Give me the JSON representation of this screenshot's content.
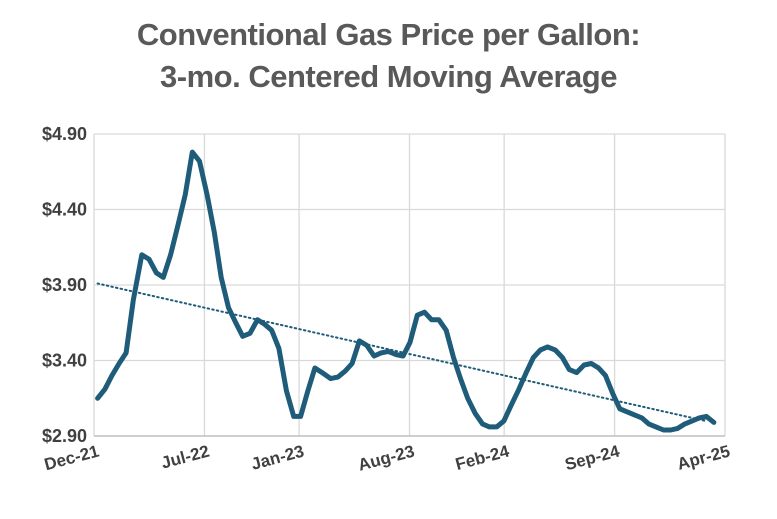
{
  "chart_data": {
    "type": "line",
    "title": [
      "Conventional Gas Price per Gallon:",
      "3-mo. Centered Moving Average"
    ],
    "xlabel": "",
    "ylabel": "",
    "y_ticks": [
      "$2.90",
      "$3.40",
      "$3.90",
      "$4.40",
      "$4.90"
    ],
    "y_tick_values": [
      2.9,
      3.4,
      3.9,
      4.4,
      4.9
    ],
    "ylim": [
      2.9,
      4.9
    ],
    "x_ticks": [
      "Dec-21",
      "Jul-22",
      "Jan-23",
      "Aug-23",
      "Feb-24",
      "Sep-24",
      "Apr-25"
    ],
    "x_tick_values": [
      "2021-12",
      "2022-07",
      "2023-01",
      "2023-08",
      "2024-02",
      "2024-09",
      "2025-04"
    ],
    "grid": true,
    "legend": "none",
    "colors": {
      "series": "#1f5c7a",
      "trend": "#1f5c7a",
      "grid": "#d9d9d9",
      "axis": "#bfbfbf"
    },
    "series": [
      {
        "style": "solid",
        "points": [
          [
            "2021-12-08",
            3.15
          ],
          [
            "2021-12-22",
            3.21
          ],
          [
            "2022-01-05",
            3.3
          ],
          [
            "2022-01-19",
            3.38
          ],
          [
            "2022-02-02",
            3.45
          ],
          [
            "2022-02-16",
            3.8
          ],
          [
            "2022-03-02",
            4.1
          ],
          [
            "2022-03-16",
            4.07
          ],
          [
            "2022-03-30",
            3.98
          ],
          [
            "2022-04-13",
            3.95
          ],
          [
            "2022-04-27",
            4.1
          ],
          [
            "2022-05-11",
            4.3
          ],
          [
            "2022-05-25",
            4.5
          ],
          [
            "2022-06-08",
            4.78
          ],
          [
            "2022-06-22",
            4.72
          ],
          [
            "2022-07-06",
            4.5
          ],
          [
            "2022-07-20",
            4.25
          ],
          [
            "2022-08-03",
            3.95
          ],
          [
            "2022-08-17",
            3.75
          ],
          [
            "2022-08-31",
            3.65
          ],
          [
            "2022-09-14",
            3.56
          ],
          [
            "2022-09-28",
            3.58
          ],
          [
            "2022-10-12",
            3.67
          ],
          [
            "2022-10-26",
            3.64
          ],
          [
            "2022-11-09",
            3.6
          ],
          [
            "2022-11-23",
            3.48
          ],
          [
            "2022-12-07",
            3.2
          ],
          [
            "2022-12-21",
            3.03
          ],
          [
            "2023-01-04",
            3.03
          ],
          [
            "2023-01-18",
            3.2
          ],
          [
            "2023-02-01",
            3.35
          ],
          [
            "2023-02-15",
            3.32
          ],
          [
            "2023-03-01",
            3.28
          ],
          [
            "2023-03-15",
            3.29
          ],
          [
            "2023-03-29",
            3.33
          ],
          [
            "2023-04-12",
            3.38
          ],
          [
            "2023-04-26",
            3.53
          ],
          [
            "2023-05-10",
            3.5
          ],
          [
            "2023-05-24",
            3.43
          ],
          [
            "2023-06-07",
            3.45
          ],
          [
            "2023-06-21",
            3.46
          ],
          [
            "2023-07-05",
            3.44
          ],
          [
            "2023-07-19",
            3.43
          ],
          [
            "2023-08-02",
            3.52
          ],
          [
            "2023-08-16",
            3.7
          ],
          [
            "2023-08-30",
            3.72
          ],
          [
            "2023-09-13",
            3.67
          ],
          [
            "2023-09-27",
            3.67
          ],
          [
            "2023-10-11",
            3.6
          ],
          [
            "2023-10-25",
            3.42
          ],
          [
            "2023-11-08",
            3.28
          ],
          [
            "2023-11-22",
            3.15
          ],
          [
            "2023-12-06",
            3.05
          ],
          [
            "2023-12-20",
            2.98
          ],
          [
            "2024-01-03",
            2.96
          ],
          [
            "2024-01-17",
            2.96
          ],
          [
            "2024-01-31",
            3.0
          ],
          [
            "2024-02-14",
            3.1
          ],
          [
            "2024-02-28",
            3.2
          ],
          [
            "2024-03-13",
            3.32
          ],
          [
            "2024-03-27",
            3.42
          ],
          [
            "2024-04-10",
            3.47
          ],
          [
            "2024-04-24",
            3.49
          ],
          [
            "2024-05-08",
            3.47
          ],
          [
            "2024-05-22",
            3.42
          ],
          [
            "2024-06-05",
            3.34
          ],
          [
            "2024-06-19",
            3.32
          ],
          [
            "2024-07-03",
            3.37
          ],
          [
            "2024-07-17",
            3.38
          ],
          [
            "2024-07-31",
            3.35
          ],
          [
            "2024-08-14",
            3.3
          ],
          [
            "2024-08-28",
            3.18
          ],
          [
            "2024-09-11",
            3.08
          ],
          [
            "2024-09-25",
            3.06
          ],
          [
            "2024-10-09",
            3.04
          ],
          [
            "2024-10-23",
            3.02
          ],
          [
            "2024-11-06",
            2.98
          ],
          [
            "2024-11-20",
            2.96
          ],
          [
            "2024-12-04",
            2.94
          ],
          [
            "2024-12-18",
            2.94
          ],
          [
            "2025-01-01",
            2.95
          ],
          [
            "2025-01-15",
            2.98
          ],
          [
            "2025-01-29",
            3.0
          ],
          [
            "2025-02-12",
            3.02
          ],
          [
            "2025-02-26",
            3.03
          ],
          [
            "2025-03-10",
            2.99
          ]
        ]
      },
      {
        "style": "dotted",
        "points": [
          [
            "2021-12-08",
            3.91
          ],
          [
            "2025-02-24",
            3.0
          ]
        ]
      }
    ]
  }
}
